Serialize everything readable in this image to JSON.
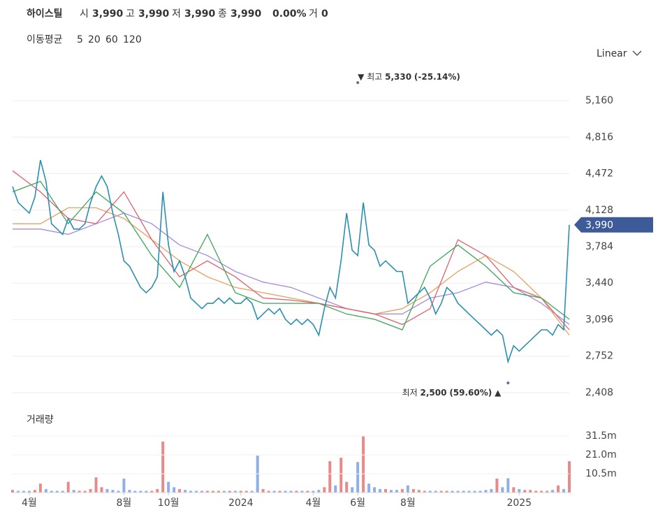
{
  "header": {
    "name": "하이스틸",
    "open_label": "시",
    "open": "3,990",
    "high_label": "고",
    "high": "3,990",
    "low_label": "저",
    "low": "3,990",
    "close_label": "종",
    "close": "3,990",
    "change": "0.00%",
    "volume_label": "거",
    "volume": "0"
  },
  "legend_title": "이동평균",
  "scale_mode": "Linear",
  "chart_data": [
    {
      "type": "line",
      "x": [
        0,
        1,
        2,
        3,
        4,
        5,
        6,
        7,
        8,
        9,
        10,
        11,
        12,
        13,
        14,
        15,
        16,
        17,
        18,
        19,
        20,
        21,
        22,
        23,
        24,
        25,
        26,
        27,
        28,
        29,
        30,
        31,
        32,
        33,
        34,
        35,
        36,
        37,
        38,
        39,
        40,
        41,
        42,
        43,
        44,
        45,
        46,
        47,
        48,
        49,
        50,
        51,
        52,
        53,
        54,
        55,
        56,
        57,
        58,
        59,
        60,
        61,
        62,
        63,
        64,
        65,
        66,
        67,
        68,
        69,
        70,
        71,
        72,
        73,
        74,
        75,
        76,
        77,
        78,
        79,
        80,
        81,
        82,
        83,
        84,
        85,
        86,
        87,
        88,
        89,
        90,
        91,
        92,
        93,
        94,
        95,
        96,
        97,
        98,
        99,
        100
      ],
      "values": [
        4350,
        4200,
        4150,
        4100,
        4250,
        4600,
        4400,
        4000,
        3950,
        3900,
        4050,
        3950,
        3950,
        4000,
        4200,
        4350,
        4450,
        4350,
        4100,
        3900,
        3650,
        3600,
        3500,
        3400,
        3350,
        3400,
        3500,
        4300,
        3800,
        3550,
        3650,
        3500,
        3300,
        3250,
        3200,
        3250,
        3250,
        3300,
        3250,
        3300,
        3250,
        3250,
        3300,
        3250,
        3100,
        3150,
        3200,
        3150,
        3200,
        3100,
        3050,
        3100,
        3050,
        3100,
        3050,
        2950,
        3200,
        3400,
        3300,
        3650,
        4100,
        3750,
        3700,
        4200,
        3800,
        3750,
        3600,
        3650,
        3600,
        3550,
        3550,
        3250,
        3300,
        3350,
        3400,
        3300,
        3150,
        3250,
        3400,
        3350,
        3250,
        3200,
        3150,
        3100,
        3050,
        3000,
        2950,
        3000,
        2950,
        2700,
        2850,
        2800,
        2850,
        2900,
        2950,
        3000,
        3000,
        2950,
        3050,
        3000,
        3990
      ],
      "color": "#2a8fb0",
      "up_color": "#e68a8a",
      "down_color": "#8fb0e6",
      "series": [
        {
          "name": "5",
          "color": "#3aa757",
          "x": [
            0,
            5,
            10,
            15,
            20,
            25,
            30,
            35,
            40,
            45,
            50,
            55,
            60,
            65,
            70,
            75,
            80,
            85,
            90,
            95,
            100
          ],
          "values": [
            4300,
            4400,
            4000,
            4300,
            4100,
            3700,
            3400,
            3900,
            3350,
            3250,
            3250,
            3250,
            3150,
            3100,
            3000,
            3600,
            3800,
            3600,
            3350,
            3300,
            3100
          ]
        },
        {
          "name": "20",
          "color": "#e06070",
          "x": [
            0,
            5,
            10,
            15,
            20,
            25,
            30,
            35,
            40,
            45,
            50,
            55,
            60,
            65,
            70,
            75,
            80,
            85,
            90,
            95,
            100
          ],
          "values": [
            4500,
            4300,
            4050,
            4000,
            4300,
            3850,
            3500,
            3650,
            3500,
            3300,
            3280,
            3250,
            3200,
            3150,
            3050,
            3200,
            3850,
            3700,
            3400,
            3300,
            3000
          ]
        },
        {
          "name": "60",
          "color": "#e8a060",
          "x": [
            0,
            5,
            10,
            15,
            20,
            25,
            30,
            35,
            40,
            45,
            50,
            55,
            60,
            65,
            70,
            75,
            80,
            85,
            90,
            95,
            100
          ],
          "values": [
            4000,
            4000,
            4150,
            4150,
            4050,
            3850,
            3650,
            3500,
            3400,
            3350,
            3300,
            3250,
            3200,
            3150,
            3200,
            3350,
            3550,
            3700,
            3550,
            3300,
            2950
          ]
        },
        {
          "name": "120",
          "color": "#a98bdb",
          "x": [
            0,
            5,
            10,
            15,
            20,
            25,
            30,
            35,
            40,
            45,
            50,
            55,
            60,
            65,
            70,
            75,
            80,
            85,
            90,
            95,
            100
          ],
          "values": [
            3950,
            3950,
            3900,
            4000,
            4100,
            4000,
            3800,
            3700,
            3550,
            3450,
            3400,
            3300,
            3200,
            3150,
            3150,
            3300,
            3350,
            3450,
            3400,
            3250,
            3050
          ]
        }
      ],
      "xlim": [
        0,
        100
      ],
      "ylim": [
        2289,
        5516
      ],
      "yticks": [
        {
          "value": 2408,
          "label": "2,408"
        },
        {
          "value": 2752,
          "label": "2,752"
        },
        {
          "value": 3096,
          "label": "3,096"
        },
        {
          "value": 3440,
          "label": "3,440"
        },
        {
          "value": 3784,
          "label": "3,784"
        },
        {
          "value": 4128,
          "label": "4,128"
        },
        {
          "value": 4472,
          "label": "4,472"
        },
        {
          "value": 4816,
          "label": "4,816"
        },
        {
          "value": 5160,
          "label": "5,160"
        }
      ],
      "grid": true,
      "max_annotation": {
        "prefix": "최고",
        "x": 62,
        "value": 5330,
        "value_label": "5,330",
        "change": "(-25.14%)"
      },
      "min_annotation": {
        "prefix": "최저",
        "x": 89,
        "value": 2500,
        "value_label": "2,500",
        "change": "(59.60%)"
      },
      "last_price": {
        "value": 3990,
        "label": "3,990"
      }
    },
    {
      "type": "bar",
      "title": "거래량",
      "values": [
        1.5,
        1,
        1,
        1,
        1.5,
        5,
        2,
        1,
        1,
        1,
        6,
        1.5,
        1,
        1,
        2,
        8.5,
        3,
        2,
        1.5,
        1,
        7.8,
        1.5,
        1,
        1,
        1,
        1,
        2,
        28.4,
        6,
        3,
        2,
        1.5,
        1,
        1,
        1,
        1,
        1,
        1,
        1,
        1,
        1,
        1,
        1,
        1,
        20.6,
        2,
        1,
        1,
        1,
        1,
        1,
        1,
        1,
        1,
        1,
        1.5,
        3,
        17.5,
        4,
        19.4,
        6,
        3,
        17,
        31.5,
        5,
        3,
        2,
        2,
        1.5,
        1.5,
        2,
        4,
        2,
        1.5,
        1,
        1,
        1,
        1,
        1,
        1,
        1,
        1,
        1,
        1,
        1,
        1.5,
        2,
        7.8,
        3,
        8,
        3,
        2,
        1.5,
        1.5,
        1,
        1,
        1,
        1.5,
        4,
        2,
        17.5
      ],
      "xlim": [
        0,
        100
      ],
      "ylim": [
        0,
        44.7
      ],
      "yticks": [
        {
          "value": 10.5,
          "label": "10.5m"
        },
        {
          "value": 21.0,
          "label": "21.0m"
        },
        {
          "value": 31.5,
          "label": "31.5m"
        }
      ],
      "xticks": [
        {
          "value": 3,
          "label": "4월"
        },
        {
          "value": 20,
          "label": "8월"
        },
        {
          "value": 28,
          "label": "10월"
        },
        {
          "value": 41,
          "label": "2024"
        },
        {
          "value": 54,
          "label": "4월"
        },
        {
          "value": 62,
          "label": "6월"
        },
        {
          "value": 71,
          "label": "8월"
        },
        {
          "value": 91,
          "label": "2025"
        }
      ]
    }
  ]
}
